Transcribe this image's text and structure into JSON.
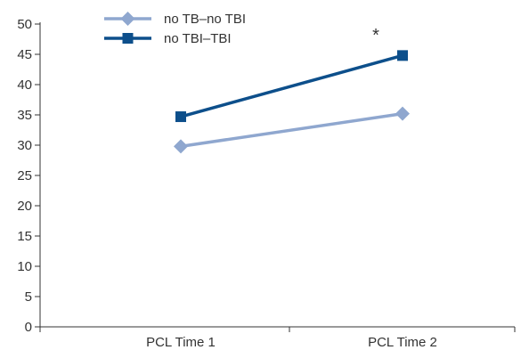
{
  "chart_data": {
    "type": "line",
    "categories": [
      "PCL Time 1",
      "PCL Time 2"
    ],
    "series": [
      {
        "name": "no TB–no TBI",
        "values": [
          29.8,
          35.2
        ],
        "color": "#8fa7cf",
        "marker": "diamond"
      },
      {
        "name": "no TBI–TBI",
        "values": [
          34.7,
          44.8
        ],
        "color": "#0d4f8b",
        "marker": "square"
      }
    ],
    "ylim": [
      0,
      50
    ],
    "yticks": [
      0,
      5,
      10,
      15,
      20,
      25,
      30,
      35,
      40,
      45,
      50
    ],
    "title": "",
    "xlabel": "",
    "ylabel": "",
    "grid": false,
    "legend_position": "top-left",
    "annotations": [
      {
        "text": "*",
        "category_index": 1,
        "y": 49
      }
    ]
  }
}
